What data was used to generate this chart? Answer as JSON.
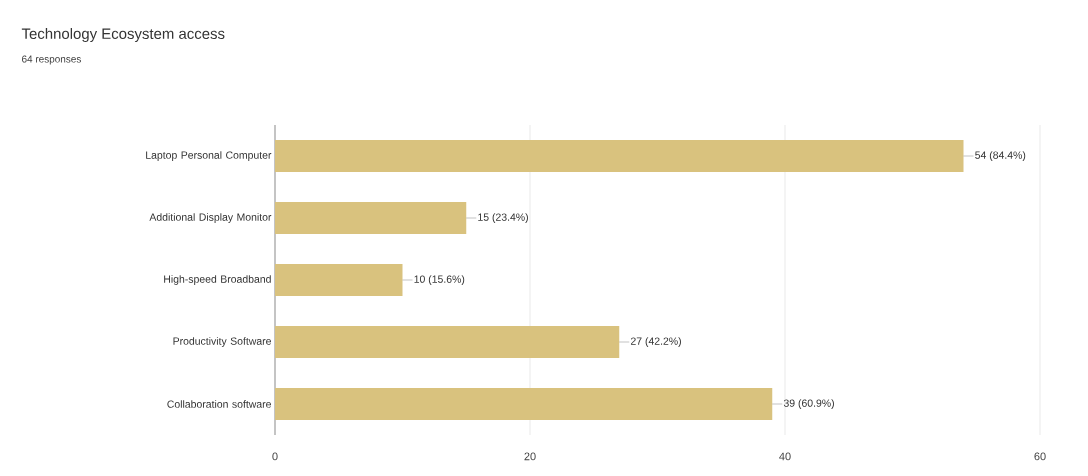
{
  "chart_data": {
    "type": "bar",
    "orientation": "horizontal",
    "title": "Technology Ecosystem access",
    "subtitle": "64 responses",
    "categories": [
      "Laptop Personal Computer",
      "Additional Display Monitor",
      "High-speed Broadband",
      "Productivity Software",
      "Collaboration software"
    ],
    "values": [
      54,
      15,
      10,
      27,
      39
    ],
    "value_labels": [
      "54 (84.4%)",
      "15 (23.4%)",
      "10 (15.6%)",
      "27 (42.2%)",
      "39 (60.9%)"
    ],
    "color": "#d9c27e",
    "xlim": [
      0,
      60
    ],
    "xticks": [
      0,
      20,
      40,
      60
    ],
    "grid": "x"
  }
}
